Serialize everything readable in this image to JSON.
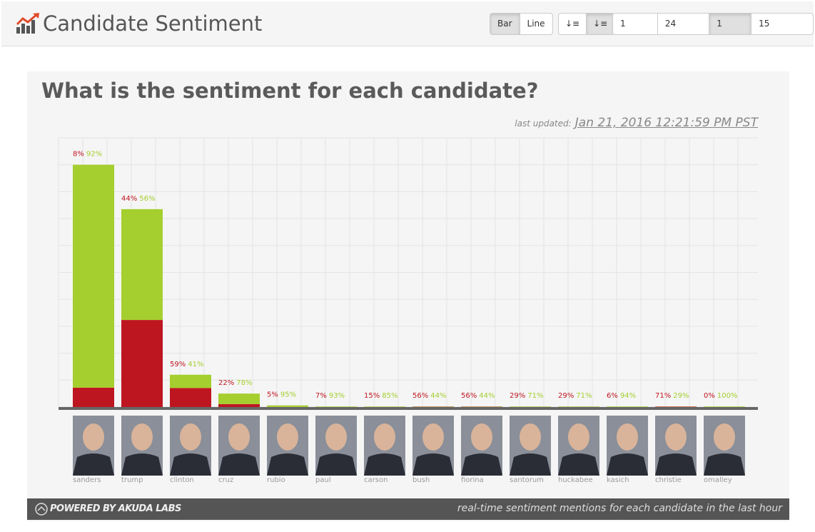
{
  "header": {
    "title": "Candidate Sentiment",
    "chart_types": [
      "Bar",
      "Line"
    ],
    "active_chart_type": "Bar",
    "time_ranges": [
      "1 week",
      "24 hours",
      "1 hour",
      "15 minutes"
    ],
    "active_time_range": "1 hour"
  },
  "panel": {
    "last_updated_label": "last updated:",
    "last_updated": "Jan 21, 2016 12:21:59 PM PST"
  },
  "chart_data": {
    "type": "stacked-bar",
    "title": "What is the sentiment for each candidate?",
    "categories": [
      "sanders",
      "trump",
      "clinton",
      "cruz",
      "rubio",
      "paul",
      "carson",
      "bush",
      "fiorina",
      "santorum",
      "huckabee",
      "kasich",
      "christie",
      "omalley"
    ],
    "volume": [
      90,
      73.5,
      12,
      5,
      0.6,
      0.2,
      0.2,
      0.2,
      0.2,
      0.2,
      0.2,
      0.2,
      0.2,
      0.2
    ],
    "ylim": [
      0,
      100
    ],
    "grid": true,
    "series": [
      {
        "name": "negative",
        "color": "#be1620",
        "values": [
          8,
          44,
          59,
          22,
          5,
          7,
          15,
          56,
          56,
          29,
          29,
          6,
          71,
          0
        ],
        "value_labels": [
          "8%",
          "44%",
          "59%",
          "22%",
          "5%",
          "7%",
          "15%",
          "56%",
          "56%",
          "29%",
          "29%",
          "6%",
          "71%",
          "0%"
        ]
      },
      {
        "name": "positive",
        "color": "#a4cf2e",
        "values": [
          92,
          56,
          41,
          78,
          95,
          93,
          85,
          44,
          44,
          71,
          71,
          94,
          29,
          100
        ],
        "value_labels": [
          "92%",
          "56%",
          "41%",
          "78%",
          "95%",
          "93%",
          "85%",
          "44%",
          "44%",
          "71%",
          "71%",
          "94%",
          "29%",
          "100%"
        ]
      }
    ]
  },
  "footer": {
    "powered_by": "POWERED BY",
    "company": "AKUDA LABS",
    "note": "real-time sentiment mentions for each candidate in the last hour"
  }
}
